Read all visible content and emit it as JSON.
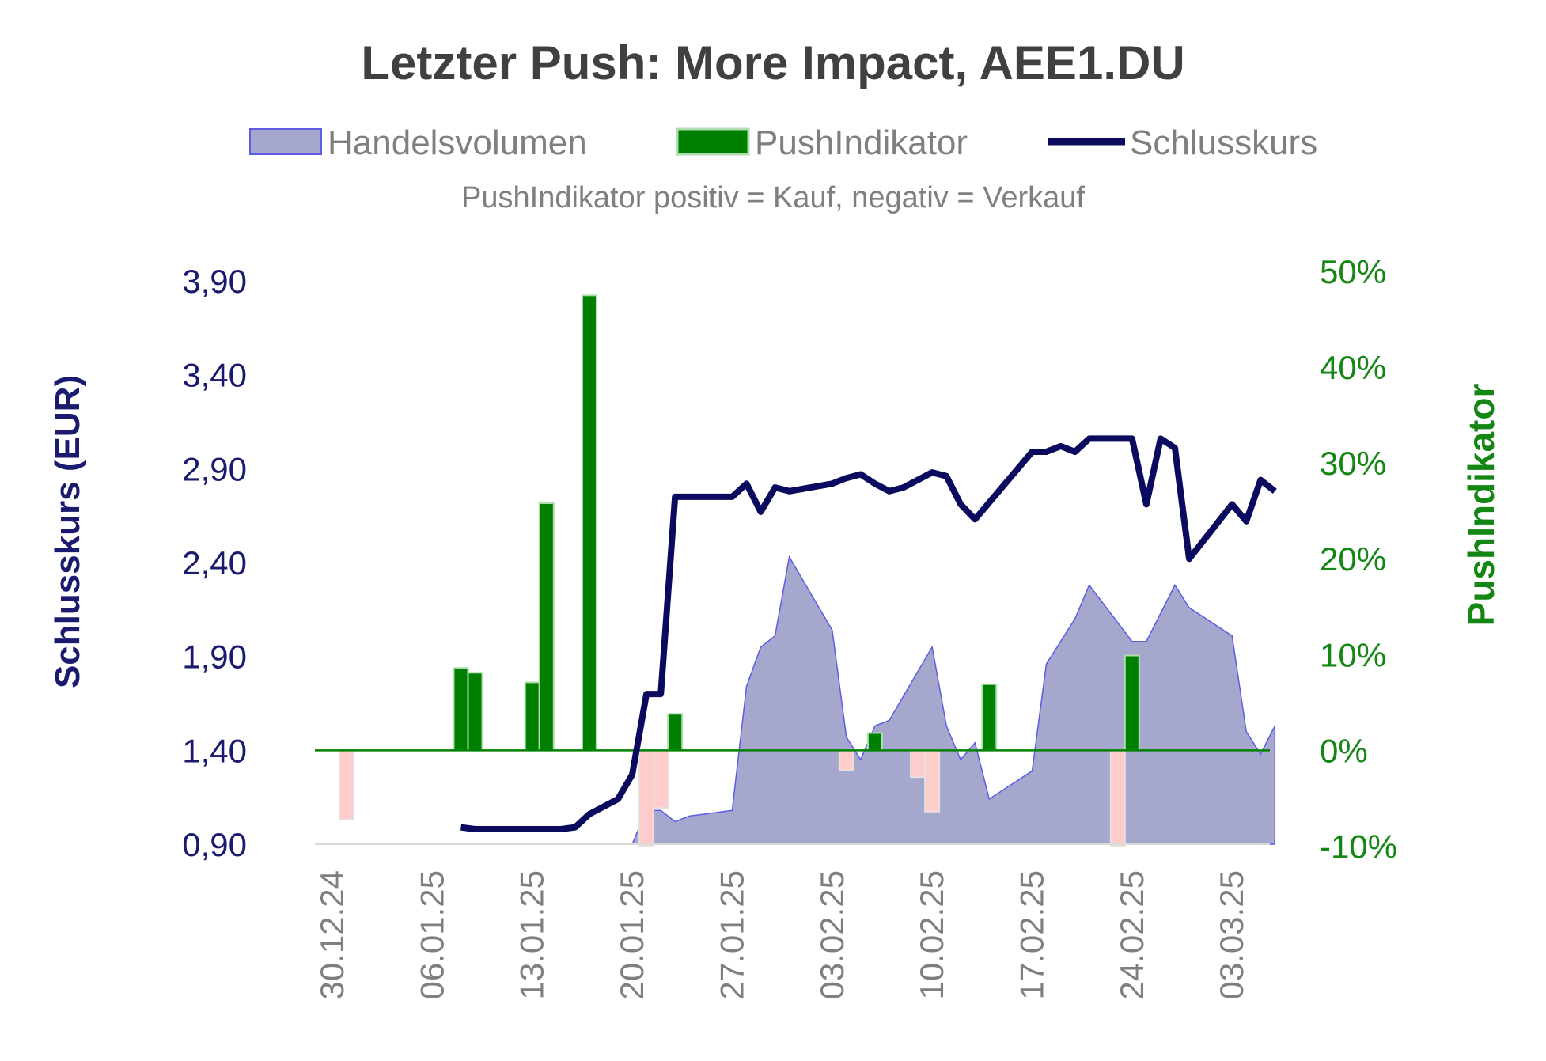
{
  "chart_data": {
    "type": "combo",
    "title": "Letzter Push: More Impact, AEE1.DU",
    "subtitle": "PushIndikator positiv = Kauf, negativ = Verkauf",
    "legend": {
      "placement": "top",
      "entries": [
        {
          "name": "Handelsvolumen",
          "color": "#a5a7cc"
        },
        {
          "name": "PushIndikator",
          "color": "#008000"
        },
        {
          "name": "Schlusskurs",
          "color": "#0a0a5e"
        }
      ]
    },
    "y_left": {
      "label": "Schlusskurs (EUR)",
      "range": [
        0.9,
        3.9
      ],
      "ticks": [
        "0,90",
        "1,40",
        "1,90",
        "2,40",
        "2,90",
        "3,40",
        "3,90"
      ],
      "color": "#1a1a6e"
    },
    "y_right": {
      "label": "PushIndikator",
      "range": [
        -10,
        50
      ],
      "ticks": [
        "-10%",
        "0%",
        "10%",
        "20%",
        "30%",
        "40%",
        "50%"
      ],
      "color": "#138613"
    },
    "x_axis": {
      "ticks": [
        "30.12.24",
        "06.01.25",
        "13.01.25",
        "20.01.25",
        "27.01.25",
        "03.02.25",
        "10.02.25",
        "17.02.25",
        "24.02.25",
        "03.03.25"
      ]
    },
    "colors": {
      "volume_fill": "#a5a7cc",
      "volume_line": "#5c5ce6",
      "push_positive": "#008000",
      "push_negative": "#ffcccc",
      "price_line": "#0a0a5e",
      "zero_line": "#008000"
    },
    "push_indicator": [
      {
        "date": "31.12.24",
        "value": -7.2
      },
      {
        "date": "08.01.25",
        "value": 8.6
      },
      {
        "date": "09.01.25",
        "value": 8.1
      },
      {
        "date": "13.01.25",
        "value": 7.1
      },
      {
        "date": "14.01.25",
        "value": 25.8
      },
      {
        "date": "17.01.25",
        "value": 47.5
      },
      {
        "date": "21.01.25",
        "value": -10.0
      },
      {
        "date": "22.01.25",
        "value": -6.0
      },
      {
        "date": "23.01.25",
        "value": 3.8
      },
      {
        "date": "04.02.25",
        "value": -2.1
      },
      {
        "date": "06.02.25",
        "value": 1.8
      },
      {
        "date": "09.02.25",
        "value": -2.8
      },
      {
        "date": "10.02.25",
        "value": -6.4
      },
      {
        "date": "14.02.25",
        "value": 6.9
      },
      {
        "date": "23.02.25",
        "value": -10.0
      },
      {
        "date": "24.02.25",
        "value": 9.9
      }
    ],
    "close_price": [
      {
        "date": "08.01.25",
        "value": 0.99
      },
      {
        "date": "09.01.25",
        "value": 0.98
      },
      {
        "date": "10.01.25",
        "value": 0.98
      },
      {
        "date": "13.01.25",
        "value": 0.98
      },
      {
        "date": "14.01.25",
        "value": 0.98
      },
      {
        "date": "15.01.25",
        "value": 0.98
      },
      {
        "date": "16.01.25",
        "value": 0.99
      },
      {
        "date": "17.01.25",
        "value": 1.06
      },
      {
        "date": "18.01.25",
        "value": 1.1
      },
      {
        "date": "19.01.25",
        "value": 1.14
      },
      {
        "date": "20.01.25",
        "value": 1.27
      },
      {
        "date": "21.01.25",
        "value": 1.7
      },
      {
        "date": "22.01.25",
        "value": 1.7
      },
      {
        "date": "23.01.25",
        "value": 2.75
      },
      {
        "date": "24.01.25",
        "value": 2.75
      },
      {
        "date": "27.01.25",
        "value": 2.75
      },
      {
        "date": "28.01.25",
        "value": 2.82
      },
      {
        "date": "29.01.25",
        "value": 2.67
      },
      {
        "date": "30.01.25",
        "value": 2.8
      },
      {
        "date": "31.01.25",
        "value": 2.78
      },
      {
        "date": "03.02.25",
        "value": 2.82
      },
      {
        "date": "04.02.25",
        "value": 2.85
      },
      {
        "date": "05.02.25",
        "value": 2.87
      },
      {
        "date": "06.02.25",
        "value": 2.82
      },
      {
        "date": "07.02.25",
        "value": 2.78
      },
      {
        "date": "08.02.25",
        "value": 2.8
      },
      {
        "date": "09.02.25",
        "value": 2.84
      },
      {
        "date": "10.02.25",
        "value": 2.88
      },
      {
        "date": "11.02.25",
        "value": 2.86
      },
      {
        "date": "12.02.25",
        "value": 2.71
      },
      {
        "date": "13.02.25",
        "value": 2.63
      },
      {
        "date": "17.02.25",
        "value": 2.99
      },
      {
        "date": "18.02.25",
        "value": 2.99
      },
      {
        "date": "19.02.25",
        "value": 3.02
      },
      {
        "date": "20.02.25",
        "value": 2.99
      },
      {
        "date": "21.02.25",
        "value": 3.06
      },
      {
        "date": "24.02.25",
        "value": 3.06
      },
      {
        "date": "25.02.25",
        "value": 2.71
      },
      {
        "date": "26.02.25",
        "value": 3.06
      },
      {
        "date": "27.02.25",
        "value": 3.01
      },
      {
        "date": "28.02.25",
        "value": 2.42
      },
      {
        "date": "03.03.25",
        "value": 2.71
      },
      {
        "date": "04.03.25",
        "value": 2.62
      },
      {
        "date": "05.03.25",
        "value": 2.84
      },
      {
        "date": "06.03.25",
        "value": 2.78
      }
    ],
    "volume_relative": [
      {
        "date": "20.01.25",
        "value": 0.0
      },
      {
        "date": "21.01.25",
        "value": 0.06
      },
      {
        "date": "22.01.25",
        "value": 0.06
      },
      {
        "date": "23.01.25",
        "value": 0.04
      },
      {
        "date": "24.01.25",
        "value": 0.05
      },
      {
        "date": "27.01.25",
        "value": 0.06
      },
      {
        "date": "28.01.25",
        "value": 0.28
      },
      {
        "date": "29.01.25",
        "value": 0.35
      },
      {
        "date": "30.01.25",
        "value": 0.37
      },
      {
        "date": "31.01.25",
        "value": 0.51
      },
      {
        "date": "03.02.25",
        "value": 0.38
      },
      {
        "date": "04.02.25",
        "value": 0.19
      },
      {
        "date": "05.02.25",
        "value": 0.15
      },
      {
        "date": "06.02.25",
        "value": 0.21
      },
      {
        "date": "07.02.25",
        "value": 0.22
      },
      {
        "date": "10.02.25",
        "value": 0.35
      },
      {
        "date": "11.02.25",
        "value": 0.21
      },
      {
        "date": "12.02.25",
        "value": 0.15
      },
      {
        "date": "13.02.25",
        "value": 0.18
      },
      {
        "date": "14.02.25",
        "value": 0.08
      },
      {
        "date": "17.02.25",
        "value": 0.13
      },
      {
        "date": "18.02.25",
        "value": 0.32
      },
      {
        "date": "19.02.25",
        "value": 0.36
      },
      {
        "date": "20.02.25",
        "value": 0.4
      },
      {
        "date": "21.02.25",
        "value": 0.46
      },
      {
        "date": "24.02.25",
        "value": 0.36
      },
      {
        "date": "25.02.25",
        "value": 0.36
      },
      {
        "date": "26.02.25",
        "value": 0.41
      },
      {
        "date": "27.02.25",
        "value": 0.46
      },
      {
        "date": "28.02.25",
        "value": 0.42
      },
      {
        "date": "03.03.25",
        "value": 0.37
      },
      {
        "date": "04.03.25",
        "value": 0.2
      },
      {
        "date": "05.03.25",
        "value": 0.16
      },
      {
        "date": "06.03.25",
        "value": 0.21
      }
    ]
  }
}
